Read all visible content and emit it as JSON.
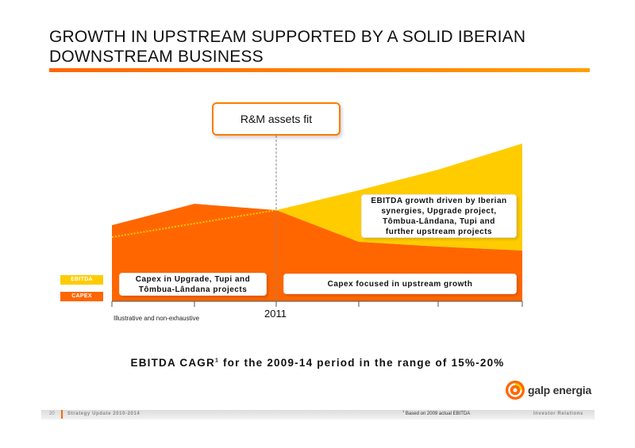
{
  "slide": {
    "title_line1": "GROWTH IN UPSTREAM SUPPORTED BY A SOLID IBERIAN",
    "title_line2": "DOWNSTREAM BUSINESS",
    "rm_label": "R&M assets fit",
    "legend": {
      "ebitda": "EBITDA",
      "capex": "CAPEX",
      "ebitda_color": "#ffcc00",
      "capex_color": "#ff6600"
    },
    "callout_ebitda": [
      "EBITDA growth driven by Iberian",
      "synergies, Upgrade project,",
      "Tômbua-Lândana, Tupi and",
      "further upstream projects"
    ],
    "callout_capex_left": [
      "Capex in Upgrade, Tupi and",
      "Tômbua-Lândana projects"
    ],
    "callout_capex_right": "Capex focused in upstream growth",
    "year_label": "2011",
    "note": "Illustrative and non-exhaustive",
    "cagr_text_a": "EBITDA CAGR",
    "cagr_sup": "1",
    "cagr_text_b": " for the 2009-14 period in the range of 15%-20%"
  },
  "footer": {
    "page_number": "20",
    "left_text": "Strategy Update 2010-2014",
    "footnote_marker": "1",
    "footnote_text": " Based on 2009 actual EBITDA",
    "right_text": "Investor Relations"
  },
  "brand": {
    "logo_text": "galp energia"
  }
}
